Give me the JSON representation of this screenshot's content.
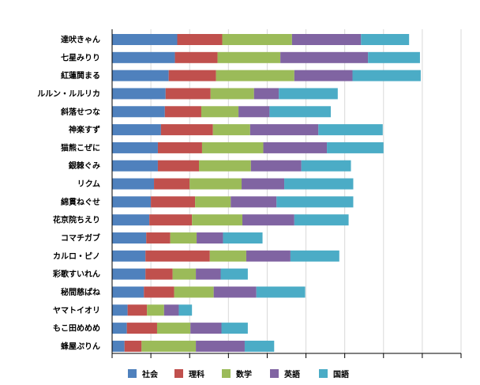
{
  "chart_data": {
    "type": "bar",
    "orientation": "horizontal",
    "stacked": true,
    "categories": [
      "達吠きゃん",
      "七星みりり",
      "紅蓮鬨まる",
      "ルルン・ルルリカ",
      "斜落せつな",
      "神楽すず",
      "猫熊こぜに",
      "銀棘ぐみ",
      "リクム",
      "綿貫ねぐせ",
      "花京院ちえり",
      "コマチガブ",
      "カルロ・ピノ",
      "彩歌すいれん",
      "秘間慈ぱね",
      "ヤマトイオリ",
      "もこ田めめめ",
      "蜂屋ぷりん"
    ],
    "series": [
      {
        "name": "社会",
        "color": "#4f81bd",
        "values": [
          84,
          81,
          73,
          69,
          68,
          63,
          59,
          59,
          54,
          50,
          48,
          44,
          43,
          43,
          41,
          20,
          19,
          16
        ]
      },
      {
        "name": "理科",
        "color": "#c0504d",
        "values": [
          58,
          55,
          61,
          58,
          47,
          67,
          57,
          53,
          46,
          57,
          55,
          31,
          83,
          35,
          39,
          25,
          39,
          22
        ]
      },
      {
        "name": "数学",
        "color": "#9bbb59",
        "values": [
          90,
          81,
          101,
          56,
          48,
          48,
          79,
          67,
          67,
          46,
          65,
          34,
          47,
          30,
          51,
          22,
          43,
          70
        ]
      },
      {
        "name": "英語",
        "color": "#8064a2",
        "values": [
          89,
          113,
          75,
          32,
          40,
          88,
          82,
          65,
          55,
          59,
          67,
          34,
          57,
          32,
          55,
          19,
          40,
          63
        ]
      },
      {
        "name": "国語",
        "color": "#4bacc6",
        "values": [
          62,
          67,
          88,
          76,
          79,
          83,
          73,
          64,
          89,
          99,
          70,
          51,
          63,
          35,
          63,
          17,
          34,
          38
        ]
      }
    ],
    "xlim": [
      0,
      450
    ],
    "x_ticks": [
      0,
      50,
      100,
      150,
      200,
      250,
      300,
      350,
      400,
      450
    ],
    "grid": "vertical",
    "legend": "bottom"
  }
}
